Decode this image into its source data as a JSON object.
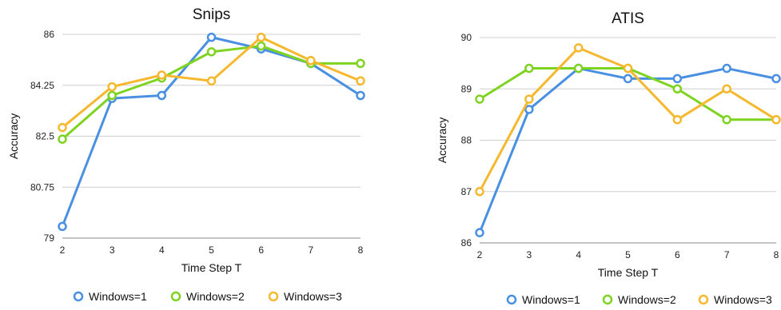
{
  "chart_data": [
    {
      "type": "line",
      "title": "Snips",
      "xlabel": "Time Step T",
      "ylabel": "Accuracy",
      "x": [
        2,
        3,
        4,
        5,
        6,
        7,
        8
      ],
      "ylim": [
        79,
        86
      ],
      "yticks": [
        "79",
        "80.75",
        "82.5",
        "84.25",
        "86"
      ],
      "xticks": [
        "2",
        "3",
        "4",
        "5",
        "6",
        "7",
        "8"
      ],
      "grid": true,
      "legend": "bottom",
      "series": [
        {
          "name": "Windows=1",
          "color": "#4a90e2",
          "values": [
            79.4,
            83.8,
            83.9,
            85.9,
            85.5,
            85.0,
            83.9
          ]
        },
        {
          "name": "Windows=2",
          "color": "#7ed321",
          "values": [
            82.4,
            83.9,
            84.5,
            85.4,
            85.6,
            85.0,
            85.0
          ]
        },
        {
          "name": "Windows=3",
          "color": "#f5b82e",
          "values": [
            82.8,
            84.2,
            84.6,
            84.4,
            85.9,
            85.1,
            84.4
          ]
        }
      ]
    },
    {
      "type": "line",
      "title": "ATIS",
      "xlabel": "Time Step T",
      "ylabel": "Accuracy",
      "x": [
        2,
        3,
        4,
        5,
        6,
        7,
        8
      ],
      "ylim": [
        86,
        90
      ],
      "yticks": [
        "86",
        "87",
        "88",
        "89",
        "90"
      ],
      "xticks": [
        "2",
        "3",
        "4",
        "5",
        "6",
        "7",
        "8"
      ],
      "grid": true,
      "legend": "bottom",
      "series": [
        {
          "name": "Windows=1",
          "color": "#4a90e2",
          "values": [
            86.2,
            88.6,
            89.4,
            89.2,
            89.2,
            89.4,
            89.2
          ]
        },
        {
          "name": "Windows=2",
          "color": "#7ed321",
          "values": [
            88.8,
            89.4,
            89.4,
            89.4,
            89.0,
            88.4,
            88.4
          ]
        },
        {
          "name": "Windows=3",
          "color": "#f5b82e",
          "values": [
            87.0,
            88.8,
            89.8,
            89.4,
            88.4,
            89.0,
            88.4
          ]
        }
      ]
    }
  ]
}
